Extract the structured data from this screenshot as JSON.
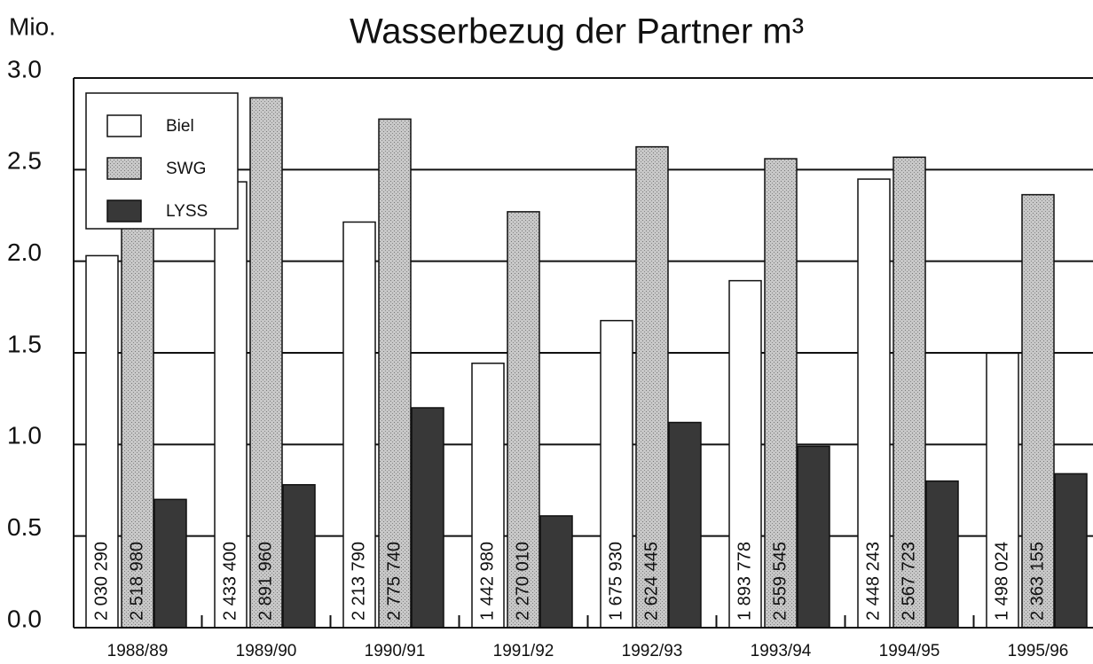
{
  "chart_data": {
    "type": "bar",
    "title": "Wasserbezug der Partner m³",
    "y_label": "Mio.",
    "categories": [
      "1988/89",
      "1989/90",
      "1990/91",
      "1991/92",
      "1992/93",
      "1993/94",
      "1994/95",
      "1995/96"
    ],
    "series": [
      {
        "name": "Biel",
        "color": "#ffffff",
        "values": [
          2.03029,
          2.4334,
          2.21379,
          1.44298,
          1.67593,
          1.893778,
          2.448243,
          1.498024
        ],
        "value_labels": [
          "2 030 290",
          "2 433 400",
          "2 213 790",
          "1 442 980",
          "1 675 930",
          "1 893 778",
          "2 448 243",
          "1 498 024"
        ]
      },
      {
        "name": "SWG",
        "color": "#b4b4b4",
        "values": [
          2.51898,
          2.89196,
          2.77574,
          2.27001,
          2.624445,
          2.559545,
          2.567723,
          2.363155
        ],
        "value_labels": [
          "2 518 980",
          "2 891 960",
          "2 775 740",
          "2 270 010",
          "2 624 445",
          "2 559 545",
          "2 567 723",
          "2 363 155"
        ]
      },
      {
        "name": "LYSS",
        "color": "#383838",
        "values": [
          0.7,
          0.78,
          1.2,
          0.61,
          1.12,
          0.99,
          0.8,
          0.84
        ]
      }
    ],
    "ylim": [
      0,
      3
    ],
    "yticks": [
      {
        "value": 0,
        "label": "0.0"
      },
      0.5,
      {
        "value": 1,
        "label": "1.0"
      },
      1.5,
      {
        "value": 2,
        "label": "2.0"
      },
      2.5,
      {
        "value": 3,
        "label": "3.0"
      }
    ],
    "grid": true,
    "legend": "upper left"
  }
}
